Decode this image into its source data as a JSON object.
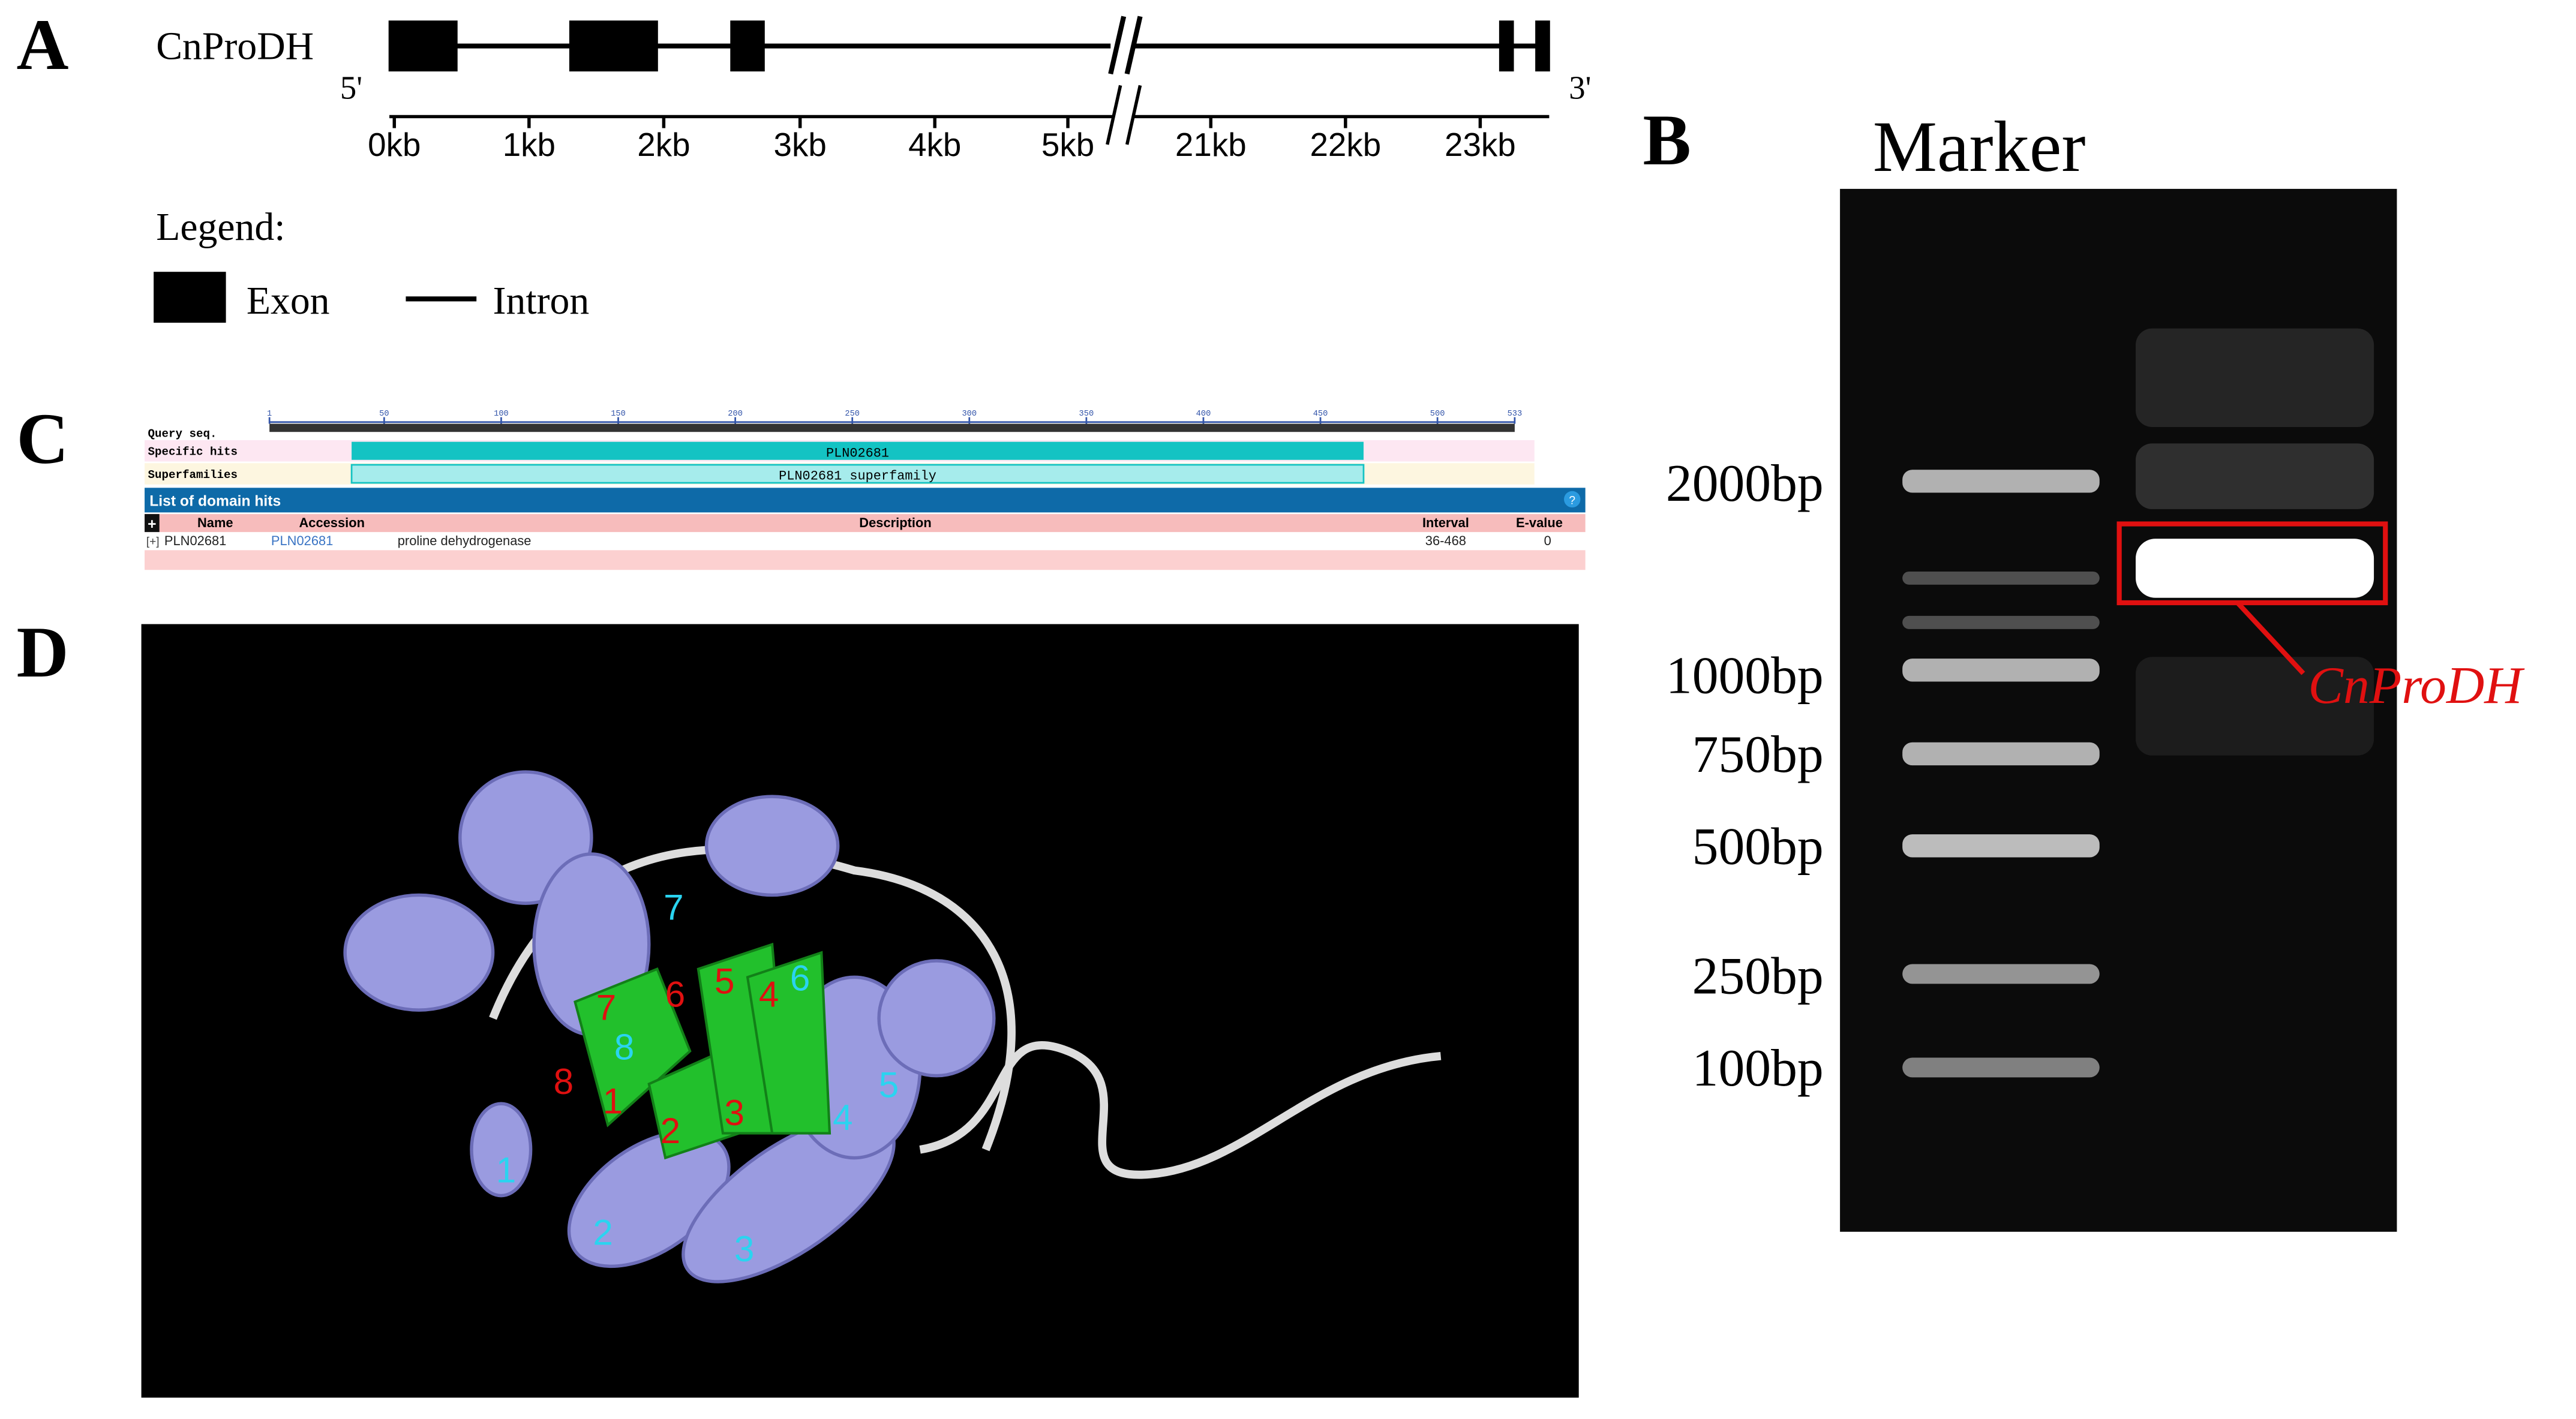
{
  "panels": {
    "A": {
      "label": "A",
      "gene_name": "CnProDH",
      "five_prime": "5'",
      "three_prime": "3'",
      "scale_labels": [
        "0kb",
        "1kb",
        "2kb",
        "3kb",
        "4kb",
        "5kb",
        "21kb",
        "22kb",
        "23kb"
      ],
      "legend_title": "Legend:",
      "legend": [
        "Exon",
        "Intron"
      ]
    },
    "B": {
      "label": "B",
      "lane_title": "Marker",
      "ladder": [
        "2000bp",
        "1000bp",
        "750bp",
        "500bp",
        "250bp",
        "100bp"
      ],
      "band_label": "CnProDH"
    },
    "C": {
      "label": "C",
      "query_label": "Query seq.",
      "ruler": [
        "1",
        "50",
        "100",
        "150",
        "200",
        "250",
        "300",
        "350",
        "400",
        "450",
        "500",
        "533"
      ],
      "row_labels": [
        "Specific hits",
        "Superfamilies"
      ],
      "specific_hit": "PLN02681",
      "superfamily_hit": "PLN02681 superfamily",
      "table_title": "List of domain hits",
      "toggle": "+",
      "help": "?",
      "columns": [
        "Name",
        "Accession",
        "Description",
        "Interval",
        "E-value"
      ],
      "rows": [
        {
          "expand": "[+]",
          "cells": [
            "PLN02681",
            "PLN02681",
            "proline dehydrogenase",
            "36-468",
            "0"
          ]
        }
      ]
    },
    "D": {
      "label": "D",
      "helix_labels": [
        "1",
        "2",
        "3",
        "4",
        "5",
        "6",
        "7",
        "8"
      ],
      "strand_labels": [
        "1",
        "2",
        "3",
        "4",
        "5",
        "6",
        "7",
        "8"
      ]
    }
  }
}
